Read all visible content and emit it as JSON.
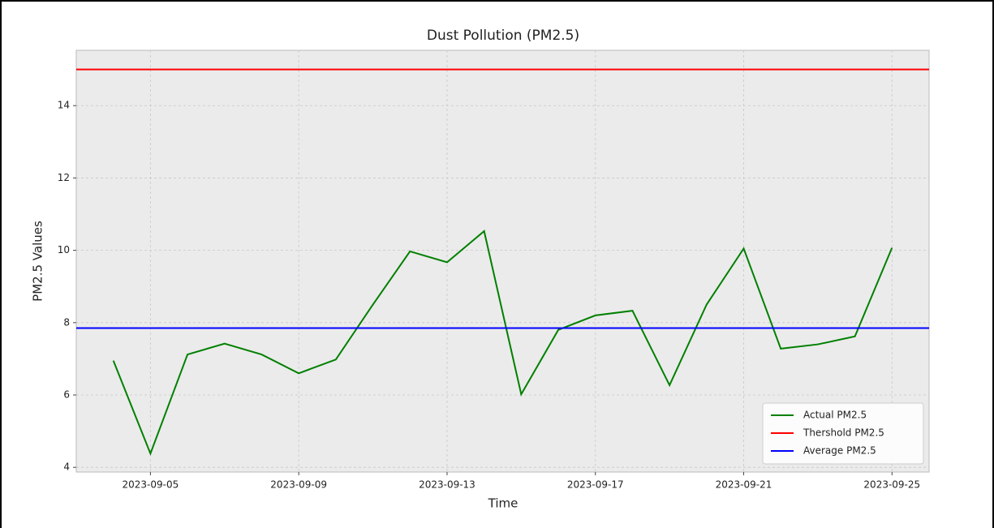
{
  "chart_data": {
    "type": "line",
    "title": "Dust Pollution (PM2.5)",
    "x_label": "Time",
    "y_label": "PM2.5 Values",
    "x": [
      "2023-09-04",
      "2023-09-05",
      "2023-09-06",
      "2023-09-07",
      "2023-09-08",
      "2023-09-09",
      "2023-09-10",
      "2023-09-11",
      "2023-09-12",
      "2023-09-13",
      "2023-09-14",
      "2023-09-15",
      "2023-09-16",
      "2023-09-17",
      "2023-09-18",
      "2023-09-19",
      "2023-09-20",
      "2023-09-21",
      "2023-09-22",
      "2023-09-23",
      "2023-09-24",
      "2023-09-25"
    ],
    "series": [
      {
        "name": "Actual PM2.5",
        "color": "#008000",
        "values": [
          6.95,
          4.38,
          7.12,
          7.42,
          7.12,
          6.6,
          6.98,
          8.5,
          9.97,
          9.67,
          10.53,
          6.02,
          7.8,
          8.2,
          8.33,
          6.27,
          8.5,
          10.05,
          7.28,
          7.4,
          7.62,
          10.07
        ]
      }
    ],
    "hlines": [
      {
        "name": "Thershold PM2.5",
        "color": "#ff0000",
        "value": 15
      },
      {
        "name": "Average PM2.5",
        "color": "#0000ff",
        "value": 7.85
      }
    ],
    "xlim": [
      "2023-09-03",
      "2023-09-26"
    ],
    "xticks": [
      "2023-09-05",
      "2023-09-09",
      "2023-09-13",
      "2023-09-17",
      "2023-09-21",
      "2023-09-25"
    ],
    "ylim": [
      3.87,
      15.53
    ],
    "yticks": [
      4,
      6,
      8,
      10,
      12,
      14
    ],
    "grid": true,
    "legend": "lower right"
  }
}
